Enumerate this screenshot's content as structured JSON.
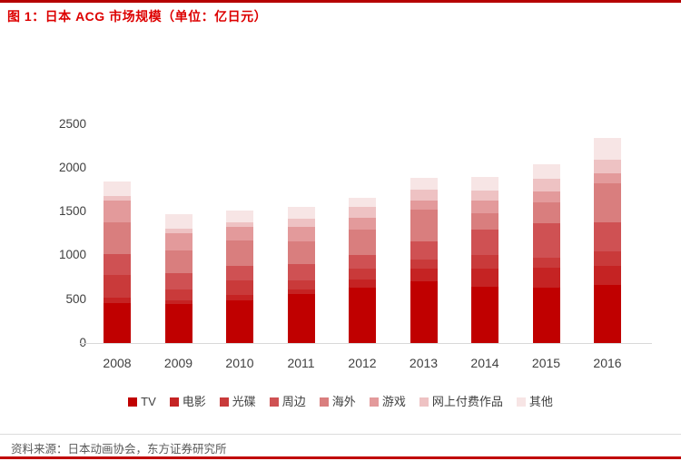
{
  "header": {
    "title": "图 1：日本 ACG 市场规模（单位：亿日元）"
  },
  "footer": {
    "source": "资料来源：日本动画协会，东方证券研究所"
  },
  "chart_data": {
    "type": "bar",
    "stacked": true,
    "title": "日本 ACG 市场规模",
    "unit": "亿日元",
    "grid": false,
    "legend_position": "bottom",
    "ylim": [
      0,
      2500
    ],
    "y_ticks": [
      0,
      500,
      1000,
      1500,
      2000,
      2500
    ],
    "categories": [
      "2008",
      "2009",
      "2010",
      "2011",
      "2012",
      "2013",
      "2014",
      "2015",
      "2016"
    ],
    "series": [
      {
        "name": "TV",
        "color": "#C00000",
        "values": [
          455,
          440,
          490,
          560,
          630,
          700,
          645,
          635,
          660
        ]
      },
      {
        "name": "电影",
        "color": "#C52323",
        "values": [
          60,
          45,
          60,
          55,
          95,
          150,
          205,
          220,
          220
        ]
      },
      {
        "name": "光碟",
        "color": "#C93A3A",
        "values": [
          265,
          125,
          165,
          100,
          125,
          105,
          150,
          120,
          170
        ]
      },
      {
        "name": "周边",
        "color": "#CF5153",
        "values": [
          230,
          190,
          170,
          190,
          155,
          205,
          295,
          390,
          325
        ]
      },
      {
        "name": "海外",
        "color": "#D97E7E",
        "values": [
          370,
          255,
          290,
          255,
          290,
          360,
          190,
          245,
          445
        ]
      },
      {
        "name": "游戏",
        "color": "#E39A9B",
        "values": [
          250,
          195,
          155,
          170,
          135,
          105,
          140,
          120,
          120
        ]
      },
      {
        "name": "网上付费作品",
        "color": "#EEC2C3",
        "values": [
          50,
          60,
          45,
          85,
          120,
          120,
          115,
          145,
          155
        ]
      },
      {
        "name": "其他",
        "color": "#F7E5E5",
        "values": [
          160,
          165,
          135,
          135,
          105,
          135,
          150,
          160,
          245
        ]
      }
    ],
    "totals": [
      1840,
      1475,
      1510,
      1550,
      1655,
      1880,
      1890,
      2035,
      2340
    ]
  }
}
